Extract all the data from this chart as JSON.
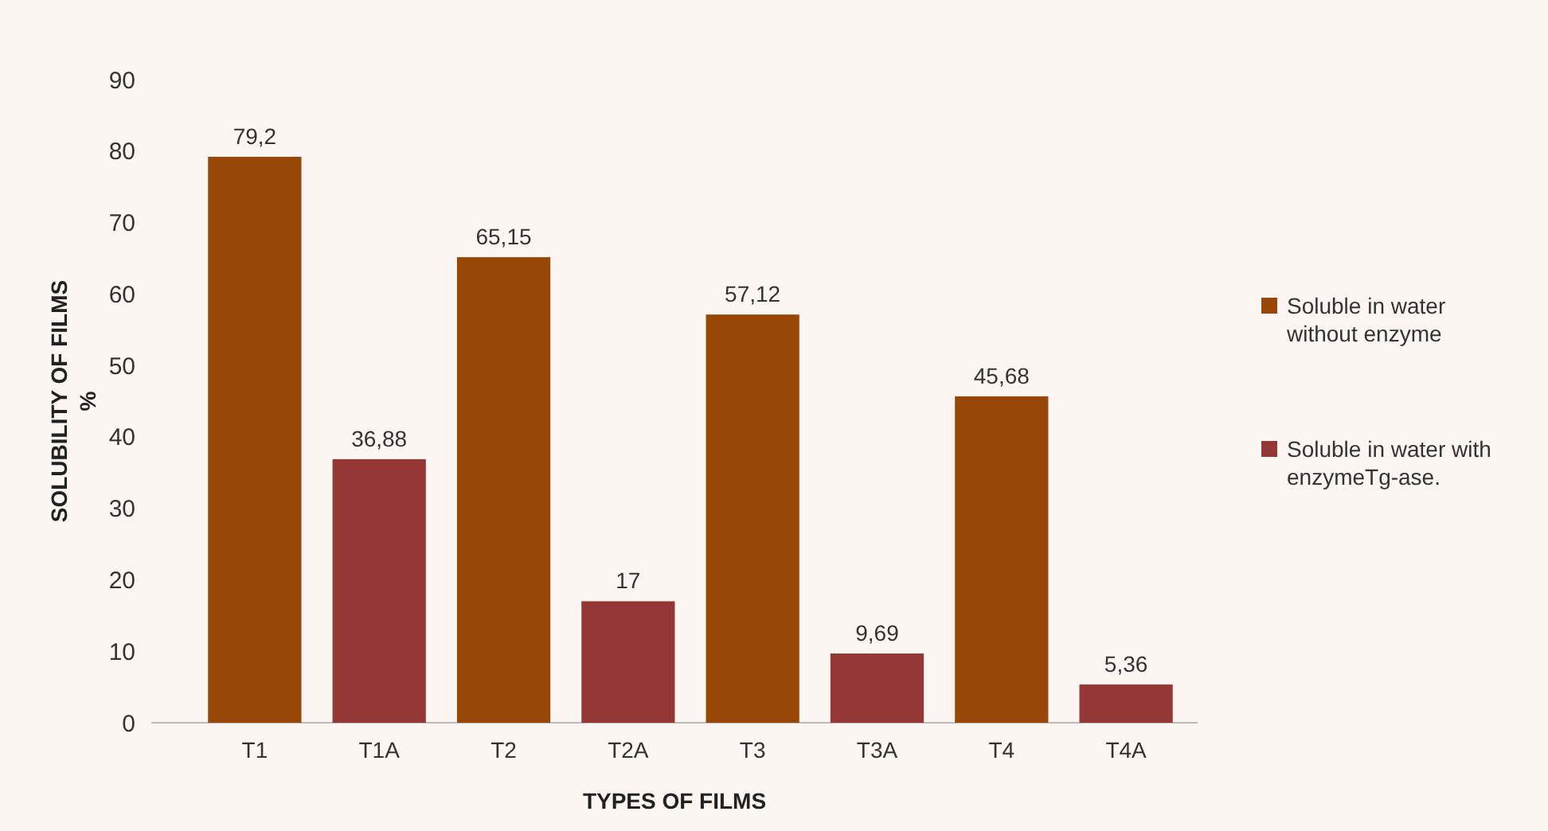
{
  "chart_data": {
    "type": "bar",
    "xlabel": "TYPES OF FILMS",
    "ylabel": "SOLUBILITY OF FILMS\n%",
    "categories": [
      "T1",
      "T1A",
      "T2",
      "T2A",
      "T3",
      "T3A",
      "T4",
      "T4A"
    ],
    "ylim": [
      0,
      90
    ],
    "yticks": [
      0,
      10,
      20,
      30,
      40,
      50,
      60,
      70,
      80,
      90
    ],
    "legend": "right",
    "series": [
      {
        "name": "Soluble in water without enzyme",
        "color": "#974706",
        "values": [
          79.2,
          null,
          65.15,
          null,
          57.12,
          null,
          45.68,
          null
        ],
        "value_labels": [
          "79,2",
          null,
          "65,15",
          null,
          "57,12",
          null,
          "45,68",
          null
        ]
      },
      {
        "name": "Soluble in water with enzymeTg-ase.",
        "color": "#953735",
        "values": [
          null,
          36.88,
          null,
          17,
          null,
          9.69,
          null,
          5.36
        ],
        "value_labels": [
          null,
          "36,88",
          null,
          "17",
          null,
          "9,69",
          null,
          "5,36"
        ]
      }
    ]
  }
}
